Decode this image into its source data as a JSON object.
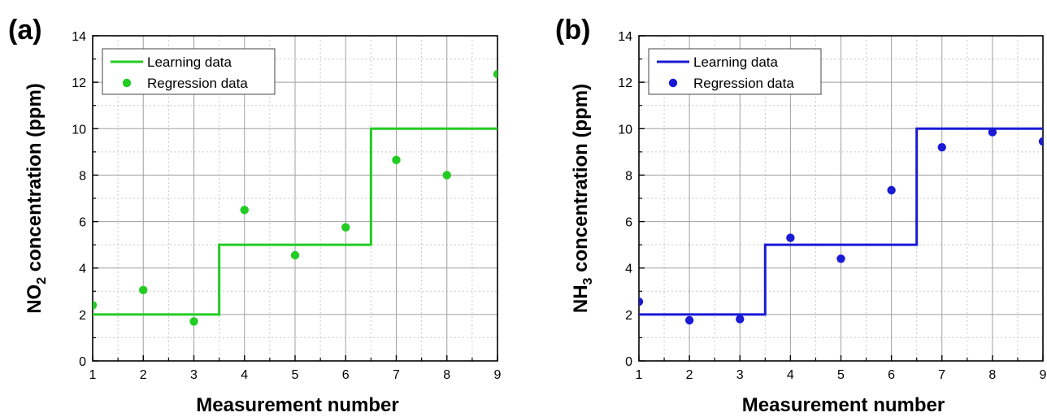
{
  "chart_data": [
    {
      "type": "line",
      "panel_label": "(a)",
      "xlabel": "Measurement number",
      "ylabel_main": "NO",
      "ylabel_sub": "2",
      "ylabel_rest": " concentration (ppm)",
      "xlim": [
        1,
        9
      ],
      "ylim": [
        0,
        14
      ],
      "xticks": [
        1,
        2,
        3,
        4,
        5,
        6,
        7,
        8,
        9
      ],
      "yticks": [
        0,
        2,
        4,
        6,
        8,
        10,
        12,
        14
      ],
      "grid": true,
      "legend_position": "top-left",
      "color": "#22cc22",
      "series": [
        {
          "name": "Learning data",
          "style": "step-line",
          "x": [
            1,
            3.5,
            3.5,
            6.5,
            6.5,
            9
          ],
          "y": [
            2,
            2,
            5,
            5,
            10,
            10
          ]
        },
        {
          "name": "Regression data",
          "style": "scatter",
          "x": [
            1,
            2,
            3,
            4,
            5,
            6,
            7,
            8,
            9
          ],
          "y": [
            2.4,
            3.05,
            1.7,
            6.5,
            4.55,
            5.75,
            8.65,
            8.0,
            12.35
          ]
        }
      ]
    },
    {
      "type": "line",
      "panel_label": "(b)",
      "xlabel": "Measurement number",
      "ylabel_main": "NH",
      "ylabel_sub": "3",
      "ylabel_rest": " concentration (ppm)",
      "xlim": [
        1,
        9
      ],
      "ylim": [
        0,
        14
      ],
      "xticks": [
        1,
        2,
        3,
        4,
        5,
        6,
        7,
        8,
        9
      ],
      "yticks": [
        0,
        2,
        4,
        6,
        8,
        10,
        12,
        14
      ],
      "grid": true,
      "legend_position": "top-left",
      "color": "#1a1ad6",
      "series": [
        {
          "name": "Learning data",
          "style": "step-line",
          "x": [
            1,
            3.5,
            3.5,
            6.5,
            6.5,
            9
          ],
          "y": [
            2,
            2,
            5,
            5,
            10,
            10
          ]
        },
        {
          "name": "Regression data",
          "style": "scatter",
          "x": [
            1,
            2,
            3,
            4,
            5,
            6,
            7,
            8,
            9
          ],
          "y": [
            2.55,
            1.75,
            1.8,
            5.3,
            4.4,
            7.35,
            9.2,
            9.85,
            9.45
          ]
        }
      ]
    }
  ]
}
